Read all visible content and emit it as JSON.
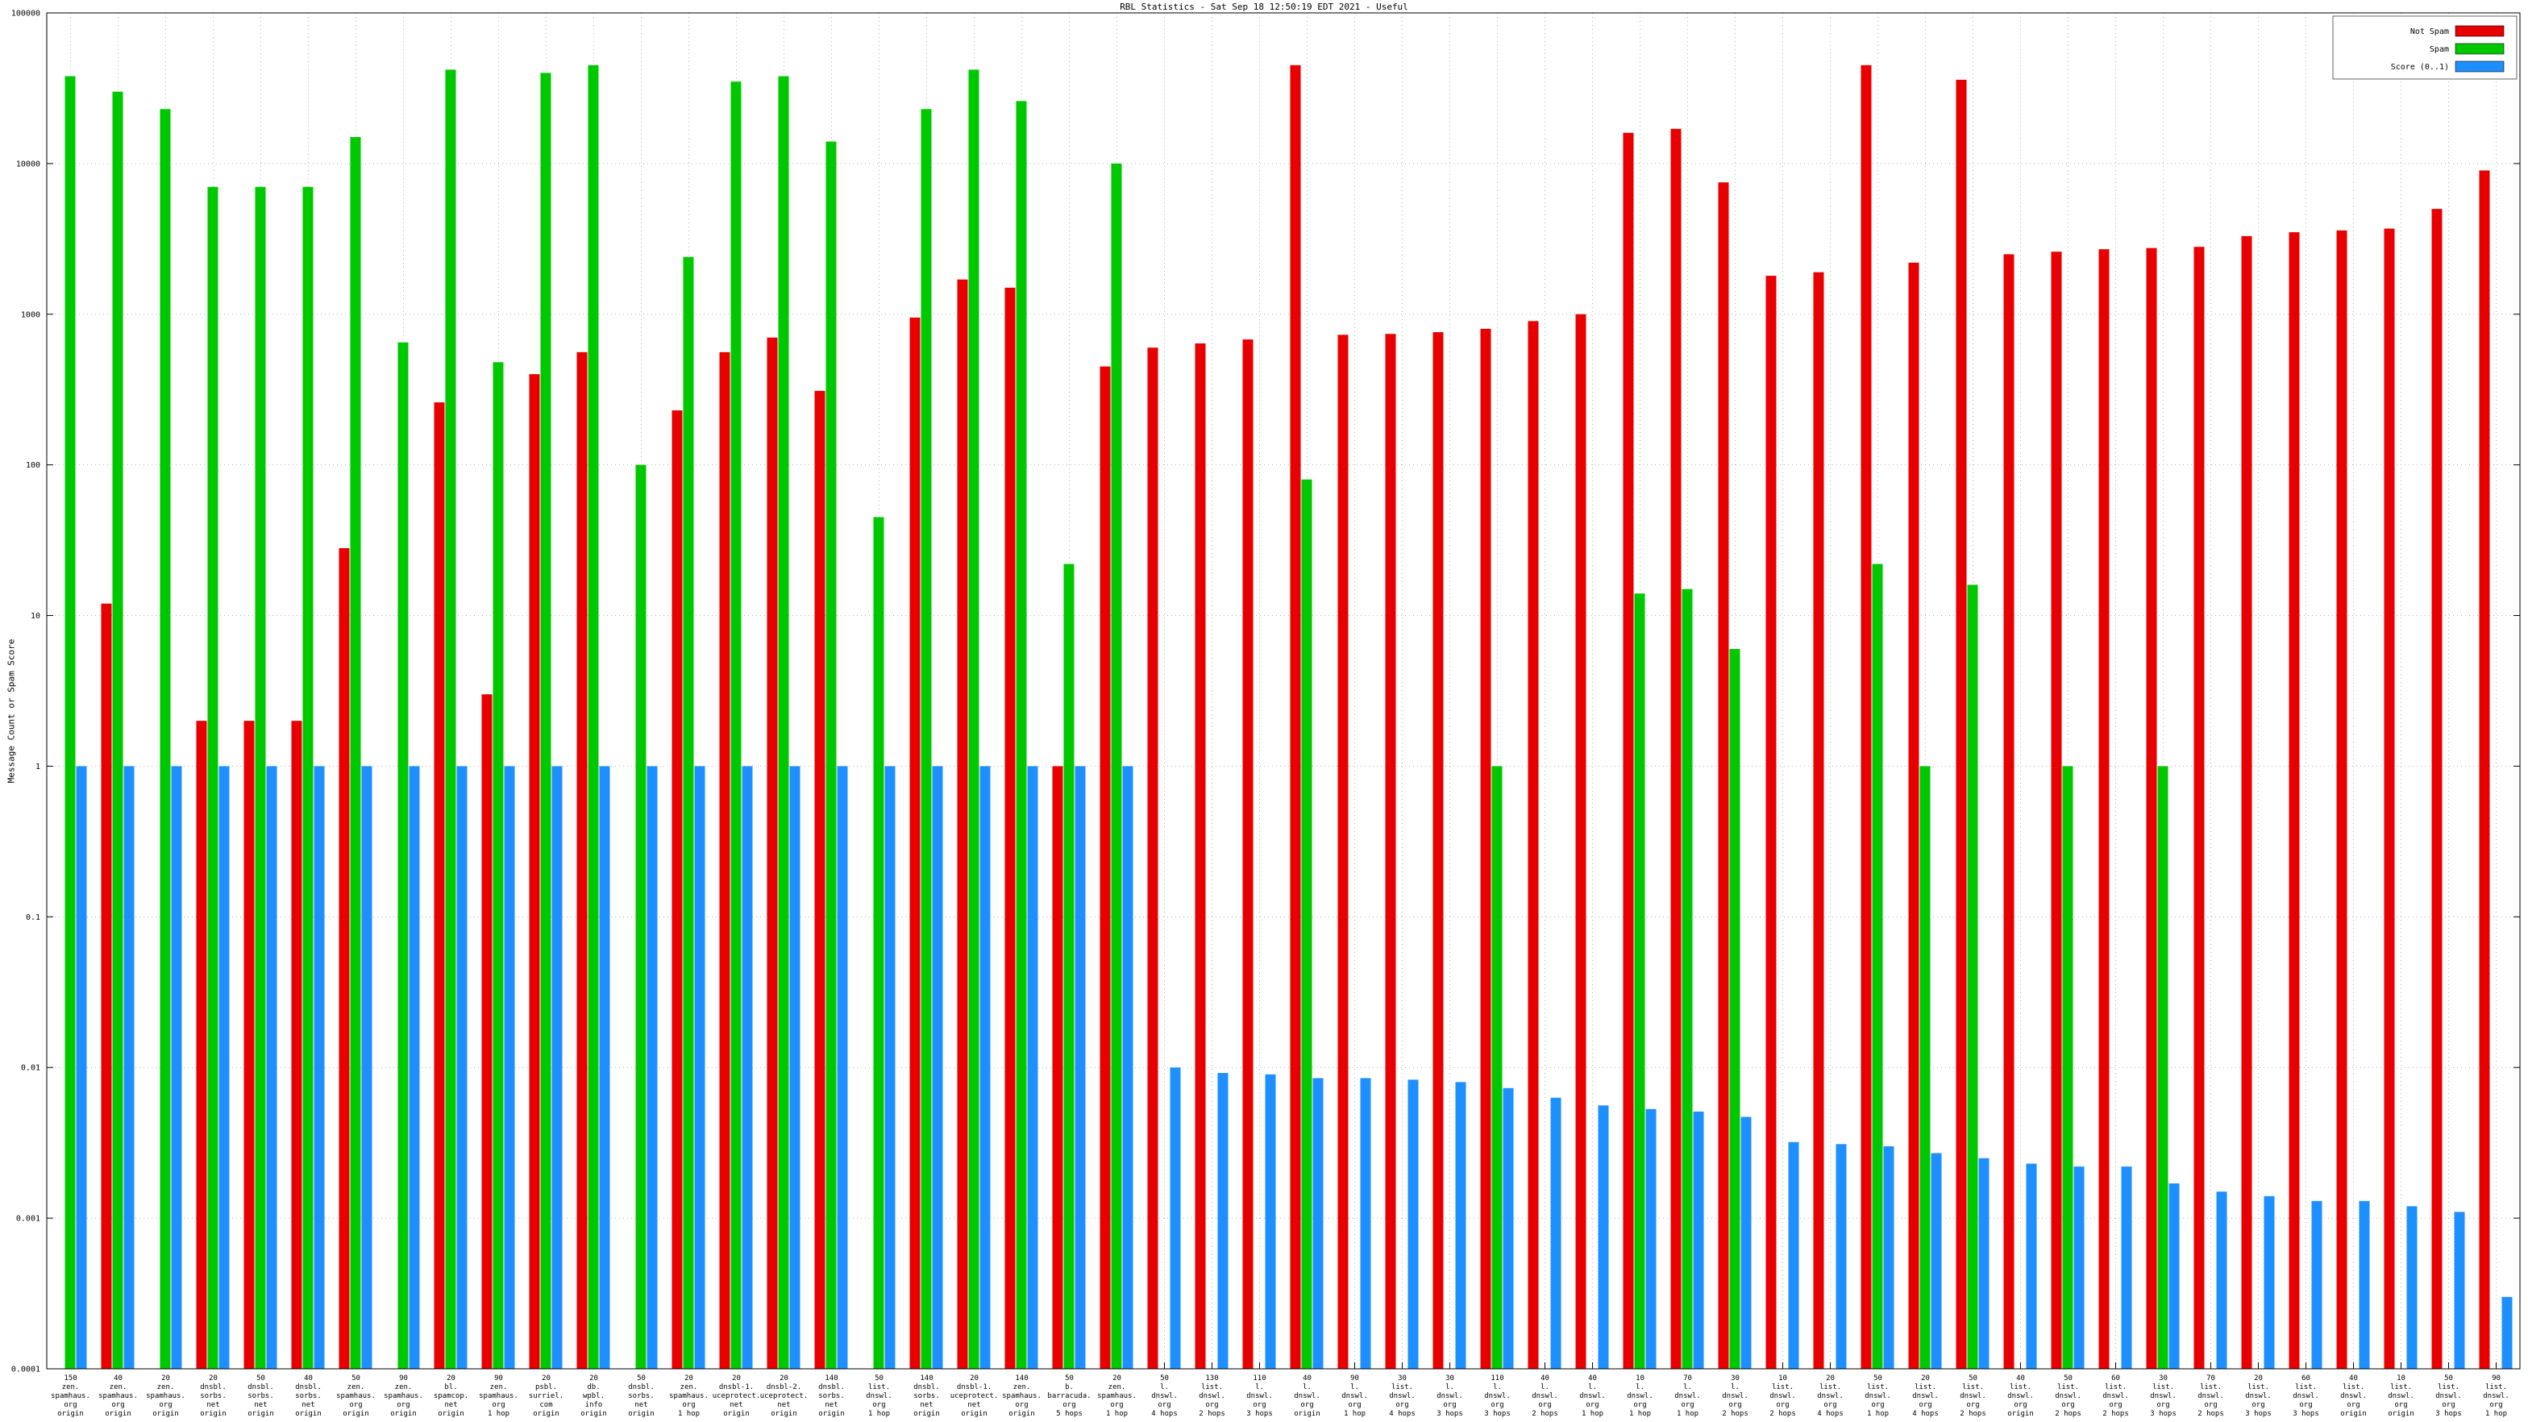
{
  "chart_data": {
    "type": "bar",
    "scale_y": "log10",
    "ylim": [
      0.0001,
      100000
    ],
    "grid": true,
    "legend_position": "top-right",
    "title": "RBL Statistics - Sat Sep 18 12:50:19 EDT 2021 - Useful",
    "ylabel": "Message Count or Spam Score",
    "yticks": [
      "100000",
      "10000",
      "1000",
      "100",
      "10",
      "1",
      "0.1",
      "0.01",
      "0.001",
      "0.0001"
    ],
    "series": [
      {
        "name": "Not Spam",
        "color": "#e80000",
        "values": [
          0,
          12,
          0,
          2,
          2,
          2,
          28,
          0,
          260,
          3,
          400,
          560,
          0,
          230,
          560,
          700,
          310,
          0,
          950,
          1700,
          1500,
          1,
          450,
          600,
          640,
          680,
          45000,
          730,
          740,
          760,
          800,
          900,
          1000,
          16000,
          17000,
          7500,
          1800,
          1900,
          45000,
          2200,
          36000,
          2500,
          2600,
          2700,
          2750,
          2800,
          3300,
          3500,
          3600,
          3700,
          5000,
          9000
        ]
      },
      {
        "name": "Spam",
        "color": "#00c800",
        "values": [
          38000,
          30000,
          23000,
          7000,
          7000,
          7000,
          15000,
          650,
          42000,
          480,
          40000,
          45000,
          100,
          2400,
          35000,
          38000,
          14000,
          45,
          23000,
          42000,
          26000,
          22,
          10000,
          0,
          0,
          0,
          80,
          0,
          0,
          0,
          1,
          0,
          0,
          14,
          15,
          6,
          0,
          0,
          22,
          1,
          16,
          0,
          1,
          0,
          1,
          0,
          0,
          0,
          0,
          0,
          0,
          0
        ]
      },
      {
        "name": "Score (0..1)",
        "color": "#1e8fff",
        "values": [
          1,
          1,
          1,
          1,
          1,
          1,
          1,
          1,
          1,
          1,
          1,
          1,
          1,
          1,
          1,
          1,
          1,
          1,
          1,
          1,
          1,
          1,
          1,
          0.01,
          0.0092,
          0.009,
          0.0085,
          0.0085,
          0.0083,
          0.008,
          0.0073,
          0.0063,
          0.0056,
          0.0053,
          0.0051,
          0.0047,
          0.0032,
          0.0031,
          0.003,
          0.0027,
          0.0025,
          0.0023,
          0.0022,
          0.0022,
          0.0017,
          0.0015,
          0.0014,
          0.0013,
          0.0013,
          0.0012,
          0.0011,
          0.0003
        ]
      }
    ],
    "categories": [
      [
        "150",
        "zen.",
        "spamhaus.",
        "org",
        "origin"
      ],
      [
        "40",
        "zen.",
        "spamhaus.",
        "org",
        "origin"
      ],
      [
        "20",
        "zen.",
        "spamhaus.",
        "org",
        "origin"
      ],
      [
        "20",
        "dnsbl.",
        "sorbs.",
        "net",
        "origin"
      ],
      [
        "50",
        "dnsbl.",
        "sorbs.",
        "net",
        "origin"
      ],
      [
        "40",
        "dnsbl.",
        "sorbs.",
        "net",
        "origin"
      ],
      [
        "50",
        "zen.",
        "spamhaus.",
        "org",
        "origin"
      ],
      [
        "90",
        "zen.",
        "spamhaus.",
        "org",
        "origin"
      ],
      [
        "20",
        "bl.",
        "spamcop.",
        "net",
        "origin"
      ],
      [
        "90",
        "zen.",
        "spamhaus.",
        "org",
        "1 hop"
      ],
      [
        "20",
        "psbl.",
        "surriel.",
        "com",
        "origin"
      ],
      [
        "20",
        "db.",
        "wpbl.",
        "info",
        "origin"
      ],
      [
        "50",
        "dnsbl.",
        "sorbs.",
        "net",
        "origin"
      ],
      [
        "20",
        "zen.",
        "spamhaus.",
        "org",
        "1 hop"
      ],
      [
        "20",
        "dnsbl-1.",
        "uceprotect.",
        "net",
        "origin"
      ],
      [
        "20",
        "dnsbl-2.",
        "uceprotect.",
        "net",
        "origin"
      ],
      [
        "140",
        "dnsbl.",
        "sorbs.",
        "net",
        "origin"
      ],
      [
        "50",
        "list.",
        "dnswl.",
        "org",
        "1 hop"
      ],
      [
        "140",
        "dnsbl.",
        "sorbs.",
        "net",
        "origin"
      ],
      [
        "20",
        "dnsbl-1.",
        "uceprotect.",
        "net",
        "origin"
      ],
      [
        "140",
        "zen.",
        "spamhaus.",
        "org",
        "origin"
      ],
      [
        "50",
        "b.",
        "barracuda.",
        "org",
        "5 hops"
      ],
      [
        "20",
        "zen.",
        "spamhaus.",
        "org",
        "1 hop"
      ],
      [
        "50",
        "l.",
        "dnswl.",
        "org",
        "4 hops"
      ],
      [
        "130",
        "list.",
        "dnswl.",
        "org",
        "2 hops"
      ],
      [
        "110",
        "l.",
        "dnswl.",
        "org",
        "3 hops"
      ],
      [
        "40",
        "l.",
        "dnswl.",
        "org",
        "origin"
      ],
      [
        "90",
        "l.",
        "dnswl.",
        "org",
        "1 hop"
      ],
      [
        "30",
        "list.",
        "dnswl.",
        "org",
        "4 hops"
      ],
      [
        "30",
        "l.",
        "dnswl.",
        "org",
        "3 hops"
      ],
      [
        "110",
        "l.",
        "dnswl.",
        "org",
        "3 hops"
      ],
      [
        "40",
        "l.",
        "dnswl.",
        "org",
        "2 hops"
      ],
      [
        "40",
        "l.",
        "dnswl.",
        "org",
        "1 hop"
      ],
      [
        "10",
        "l.",
        "dnswl.",
        "org",
        "1 hop"
      ],
      [
        "70",
        "l.",
        "dnswl.",
        "org",
        "1 hop"
      ],
      [
        "30",
        "l.",
        "dnswl.",
        "org",
        "2 hops"
      ],
      [
        "10",
        "list.",
        "dnswl.",
        "org",
        "2 hops"
      ],
      [
        "20",
        "list.",
        "dnswl.",
        "org",
        "4 hops"
      ],
      [
        "50",
        "list.",
        "dnswl.",
        "org",
        "1 hop"
      ],
      [
        "20",
        "list.",
        "dnswl.",
        "org",
        "4 hops"
      ],
      [
        "50",
        "list.",
        "dnswl.",
        "org",
        "2 hops"
      ],
      [
        "40",
        "list.",
        "dnswl.",
        "org",
        "origin"
      ],
      [
        "50",
        "list.",
        "dnswl.",
        "org",
        "2 hops"
      ],
      [
        "60",
        "list.",
        "dnswl.",
        "org",
        "2 hops"
      ],
      [
        "30",
        "list.",
        "dnswl.",
        "org",
        "3 hops"
      ],
      [
        "70",
        "list.",
        "dnswl.",
        "org",
        "2 hops"
      ],
      [
        "20",
        "list.",
        "dnswl.",
        "org",
        "3 hops"
      ],
      [
        "60",
        "list.",
        "dnswl.",
        "org",
        "3 hops"
      ],
      [
        "40",
        "list.",
        "dnswl.",
        "org",
        "origin"
      ],
      [
        "10",
        "list.",
        "dnswl.",
        "org",
        "origin"
      ],
      [
        "50",
        "list.",
        "dnswl.",
        "org",
        "3 hops"
      ],
      [
        "90",
        "list.",
        "dnswl.",
        "org",
        "1 hop"
      ]
    ]
  }
}
